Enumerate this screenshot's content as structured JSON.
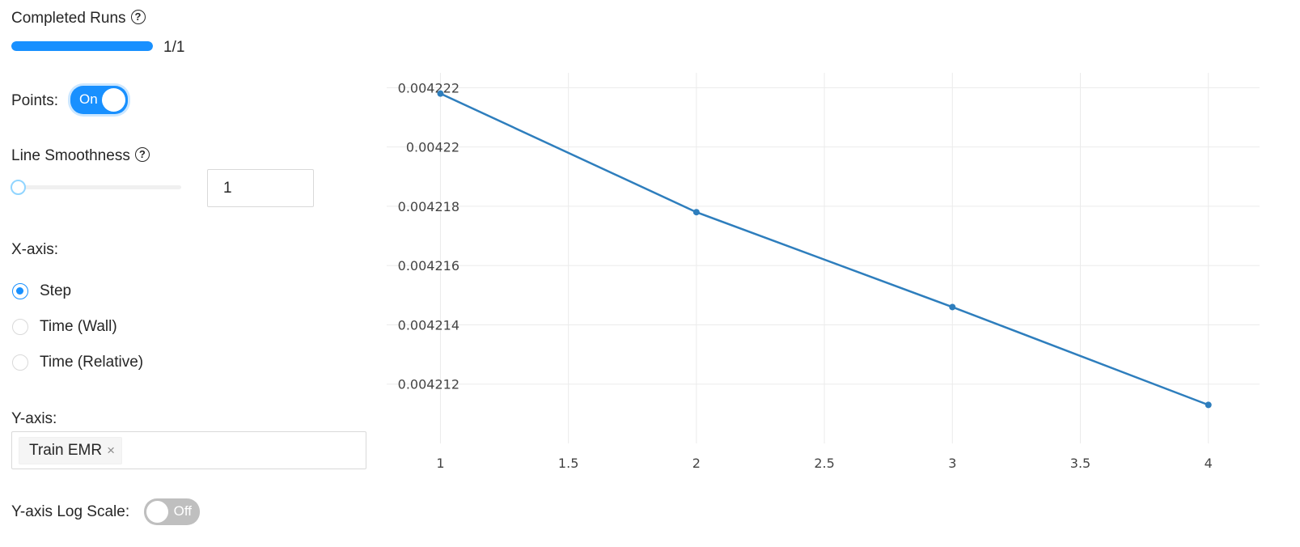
{
  "completed_runs": {
    "label": "Completed Runs",
    "help": "?",
    "progress": 1.0,
    "count_text": "1/1"
  },
  "points": {
    "label": "Points:",
    "toggle_text": "On",
    "enabled": true
  },
  "smoothness": {
    "label": "Line Smoothness",
    "help": "?",
    "slider_value": 1,
    "input_value": "1"
  },
  "xaxis": {
    "label": "X-axis:",
    "options": [
      {
        "label": "Step",
        "selected": true
      },
      {
        "label": "Time (Wall)",
        "selected": false
      },
      {
        "label": "Time (Relative)",
        "selected": false
      }
    ]
  },
  "yaxis": {
    "label": "Y-axis:",
    "tags": [
      "Train EMR"
    ],
    "tag_close": "×"
  },
  "ylog": {
    "label": "Y-axis Log Scale:",
    "toggle_text": "Off",
    "enabled": false
  },
  "colors": {
    "accent": "#1890ff",
    "line": "#2e7ebd",
    "grid": "#ebebeb"
  },
  "chart_data": {
    "type": "line",
    "mode": "lines+markers",
    "x": [
      1,
      2,
      3,
      4
    ],
    "series": [
      {
        "values": [
          0.0042218,
          0.0042178,
          0.0042146,
          0.0042113
        ]
      }
    ],
    "xticks": [
      1,
      1.5,
      2,
      2.5,
      3,
      3.5,
      4
    ],
    "xtick_labels": [
      "1",
      "1.5",
      "2",
      "2.5",
      "3",
      "3.5",
      "4"
    ],
    "yticks": [
      0.004212,
      0.004214,
      0.004216,
      0.004218,
      0.00422,
      0.004222
    ],
    "ytick_labels": [
      "0.004212",
      "0.004214",
      "0.004216",
      "0.004218",
      "0.00422",
      "0.004222"
    ],
    "xlim": [
      0.79,
      4.2
    ],
    "ylim": [
      0.00421,
      0.0042225
    ],
    "grid": true
  }
}
